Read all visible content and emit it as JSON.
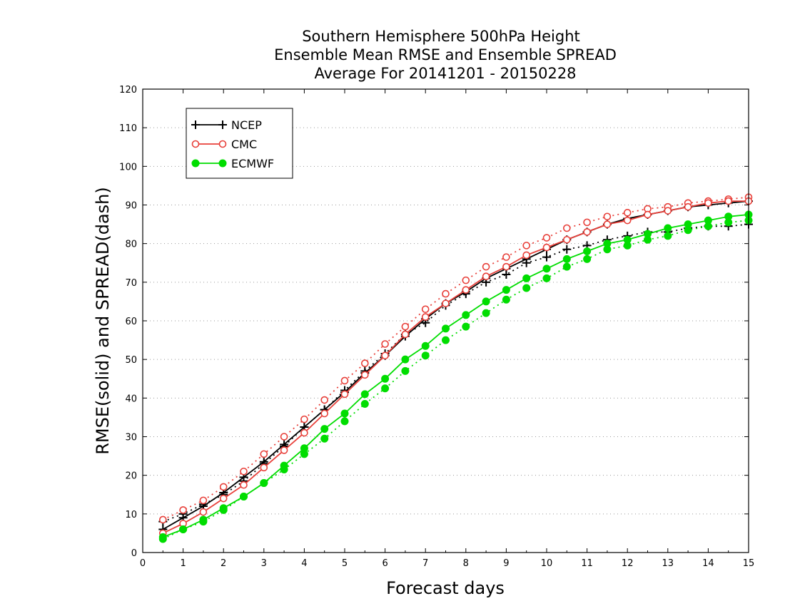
{
  "chart_data": {
    "type": "line",
    "title": [
      "Southern Hemisphere 500hPa Height",
      "Ensemble Mean RMSE and Ensemble SPREAD",
      "Average For 20141201 - 20150228"
    ],
    "xlabel": "Forecast days",
    "ylabel": "RMSE(solid) and SPREAD(dash)",
    "xlim": [
      0,
      15
    ],
    "ylim": [
      0,
      120
    ],
    "xticks": [
      "0",
      "1",
      "2",
      "3",
      "4",
      "5",
      "6",
      "7",
      "8",
      "9",
      "10",
      "11",
      "12",
      "13",
      "14",
      "15"
    ],
    "yticks": [
      "0",
      "10",
      "20",
      "30",
      "40",
      "50",
      "60",
      "70",
      "80",
      "90",
      "100",
      "110",
      "120"
    ],
    "grid": "horizontal dotted",
    "legend_position": "top-left",
    "x": [
      0.5,
      1,
      1.5,
      2,
      2.5,
      3,
      3.5,
      4,
      4.5,
      5,
      5.5,
      6,
      6.5,
      7,
      7.5,
      8,
      8.5,
      9,
      9.5,
      10,
      10.5,
      11,
      11.5,
      12,
      12.5,
      13,
      13.5,
      14,
      14.5,
      15
    ],
    "series": [
      {
        "name": "NCEP",
        "color": "#000000",
        "marker": "plus",
        "rmse": [
          6,
          9,
          12,
          15.5,
          19.5,
          23.5,
          28,
          32.5,
          37,
          41.5,
          46.5,
          51,
          56,
          60.5,
          64.5,
          67.5,
          71,
          73.5,
          76,
          78.5,
          81,
          83,
          85,
          86.5,
          87.5,
          88.5,
          89.5,
          90,
          90.5,
          91
        ],
        "spread": [
          8,
          10,
          12.5,
          15,
          18.5,
          23,
          27.5,
          32.5,
          37,
          42,
          47,
          51.5,
          56.5,
          59.5,
          64,
          67,
          70,
          72,
          75,
          76.5,
          78.5,
          79.5,
          81,
          82,
          83,
          83,
          84,
          84.5,
          84.5,
          85
        ]
      },
      {
        "name": "CMC",
        "color": "#e8403a",
        "marker": "open-circle",
        "rmse": [
          5,
          7.5,
          10.5,
          14,
          17.5,
          22,
          26.5,
          31,
          36,
          41,
          46,
          51,
          56.5,
          61,
          64.5,
          68,
          71.5,
          74,
          77,
          79,
          81,
          83,
          85,
          86,
          87.5,
          88.5,
          89.5,
          90.5,
          91,
          91
        ],
        "spread": [
          8.5,
          11,
          13.5,
          17,
          21,
          25.5,
          30,
          34.5,
          39.5,
          44.5,
          49,
          54,
          58.5,
          63,
          67,
          70.5,
          74,
          76.5,
          79.5,
          81.5,
          84,
          85.5,
          87,
          88,
          89,
          89.5,
          90.5,
          91,
          91.5,
          92
        ]
      },
      {
        "name": "ECMWF",
        "color": "#00dd00",
        "marker": "filled-circle",
        "rmse": [
          4,
          6,
          8.5,
          11.5,
          14.5,
          18,
          22.5,
          27,
          32,
          36,
          41,
          45,
          50,
          53.5,
          58,
          61.5,
          65,
          68,
          71,
          73.5,
          76,
          78,
          80,
          81,
          82.5,
          84,
          85,
          86,
          87,
          87.5
        ],
        "spread": [
          3.5,
          6,
          8,
          11,
          14.5,
          18,
          21.5,
          25.5,
          29.5,
          34,
          38.5,
          42.5,
          47,
          51,
          55,
          58.5,
          62,
          65.5,
          68.5,
          71,
          74,
          76,
          78.5,
          79.5,
          81,
          82,
          83.5,
          84.5,
          85.5,
          86
        ]
      }
    ]
  }
}
